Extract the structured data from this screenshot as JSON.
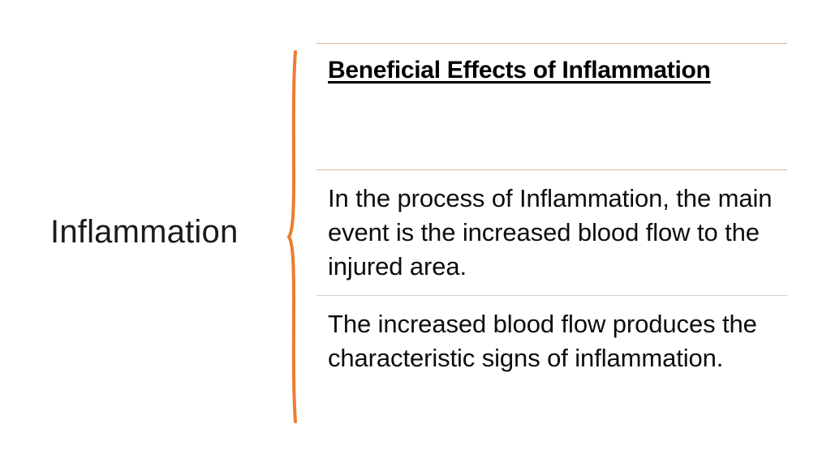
{
  "slide": {
    "title": "Inflammation",
    "accent_color": "#ed7d31",
    "items": [
      {
        "text": "Beneficial Effects of Inflammation"
      },
      {
        "text": "In the process of Inflammation, the main event is the increased blood flow to the injured area."
      },
      {
        "text": "The increased blood flow produces the characteristic signs of inflammation."
      }
    ]
  }
}
